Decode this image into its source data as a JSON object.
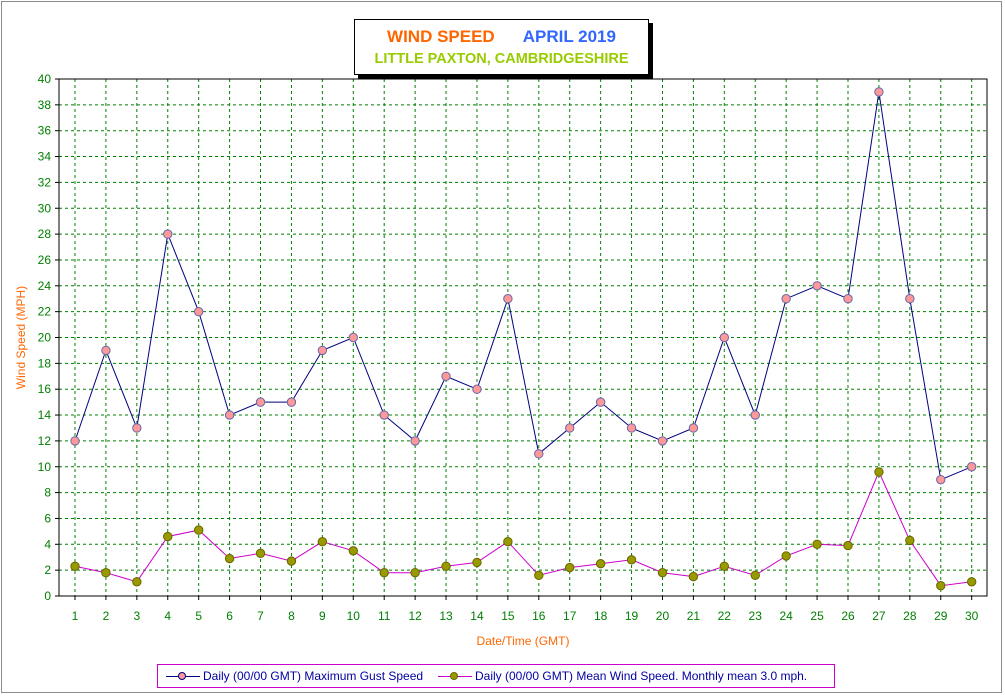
{
  "title": {
    "line1_left": "WIND SPEED",
    "line1_right": "APRIL 2019",
    "line2": "LITTLE PAXTON, CAMBRIDGESHIRE"
  },
  "colors": {
    "title_left": "#ff6600",
    "title_right": "#3366ff",
    "title_line2": "#99cc00",
    "grid": "#008000",
    "gust_line": "#000080",
    "gust_marker": "#ff9999",
    "mean_line": "#cc00cc",
    "mean_marker": "#999900"
  },
  "chart_data": {
    "type": "line",
    "x": [
      1,
      2,
      3,
      4,
      5,
      6,
      7,
      8,
      9,
      10,
      11,
      12,
      13,
      14,
      15,
      16,
      17,
      18,
      19,
      20,
      21,
      22,
      23,
      24,
      25,
      26,
      27,
      28,
      29,
      30
    ],
    "xlabel": "Date/Time (GMT)",
    "ylabel": "Wind Speed (MPH)",
    "ylim": [
      0,
      40
    ],
    "ytick_step": 2,
    "grid": true,
    "legend_position": "bottom",
    "series": [
      {
        "name": "Daily (00/00 GMT) Maximum Gust Speed",
        "values": [
          12,
          19,
          13,
          28,
          22,
          14,
          15,
          15,
          19,
          20,
          14,
          12,
          17,
          16,
          23,
          11,
          13,
          15,
          13,
          12,
          13,
          20,
          14,
          23,
          24,
          23,
          39,
          23,
          9,
          10
        ]
      },
      {
        "name": "Daily (00/00 GMT) Mean Wind Speed. Monthly mean 3.0 mph.",
        "values": [
          2.3,
          1.8,
          1.1,
          4.6,
          5.1,
          2.9,
          3.3,
          2.7,
          4.2,
          3.5,
          1.8,
          1.8,
          2.3,
          2.6,
          4.2,
          1.6,
          2.2,
          2.5,
          2.8,
          1.8,
          1.5,
          2.3,
          1.6,
          3.1,
          4.0,
          3.9,
          9.6,
          4.3,
          0.8,
          1.1
        ]
      }
    ]
  }
}
